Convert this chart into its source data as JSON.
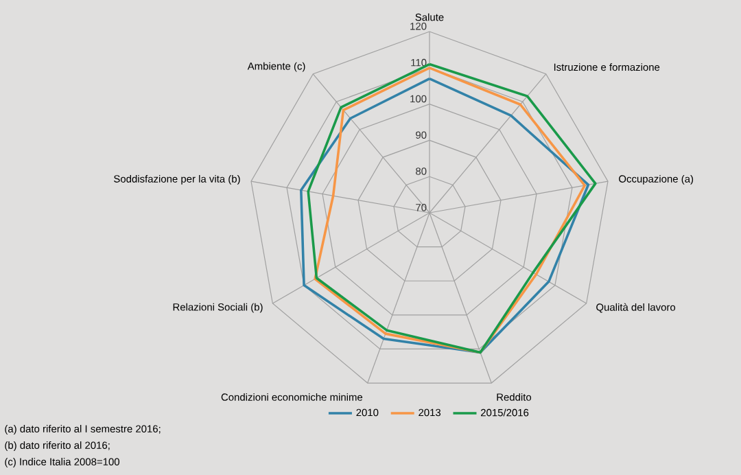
{
  "chart_data": {
    "type": "radar",
    "categories": [
      "Salute",
      "Istruzione e formazione",
      "Occupazione (a)",
      "Qualità del lavoro",
      "Reddito",
      "Condizioni economiche minime",
      "Relazioni Sociali (b)",
      "Soddisfazione per la vita (b)",
      "Ambiente (c)"
    ],
    "series": [
      {
        "name": "2010",
        "color": "#3282a8",
        "values": [
          107,
          105,
          114.5,
          108,
          111,
          107,
          110,
          106,
          104
        ]
      },
      {
        "name": "2013",
        "color": "#f79646",
        "values": [
          110,
          109,
          113.5,
          104,
          111,
          105.5,
          106.5,
          97,
          107
        ]
      },
      {
        "name": "2015/2016",
        "color": "#1a9a4a",
        "values": [
          111,
          112,
          116.5,
          103,
          111,
          104.5,
          106,
          104,
          108
        ]
      }
    ],
    "ylim": [
      70,
      120
    ],
    "yticks": [
      70,
      80,
      90,
      100,
      110,
      120
    ],
    "grid": true,
    "legend": "bottom",
    "annotations": [
      "(a) dato riferito al I semestre 2016;",
      "(b) dato riferito al 2016;",
      "(c) Indice Italia 2008=100"
    ]
  }
}
